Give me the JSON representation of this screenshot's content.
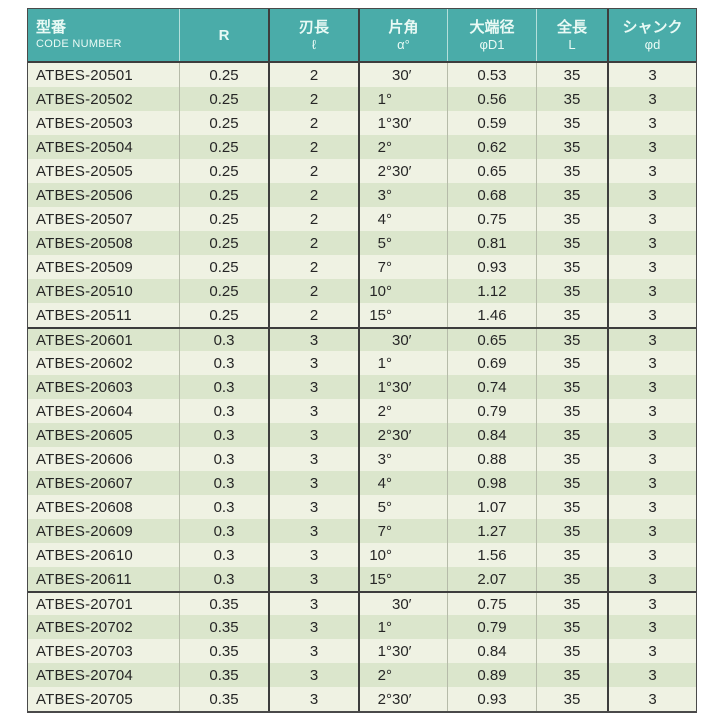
{
  "colors": {
    "header_bg": "#4aaca9",
    "header_text": "#e9faf5",
    "row_light": "#eff2e3",
    "row_alt": "#dbe6cc",
    "grid_dark": "#3d3d3d",
    "grid_light": "#b6bba9",
    "body_text": "#262626",
    "page_bg": "#ffffff"
  },
  "table": {
    "columns": [
      {
        "key": "code",
        "jp": "型番",
        "sub": "CODE NUMBER"
      },
      {
        "key": "radius",
        "jp": "R",
        "sub": ""
      },
      {
        "key": "flute-length",
        "jp": "刃長",
        "sub": "ℓ"
      },
      {
        "key": "angle",
        "jp": "片角",
        "sub": "α°"
      },
      {
        "key": "large-end-dia",
        "jp": "大端径",
        "sub": "φD1"
      },
      {
        "key": "overall-length",
        "jp": "全長",
        "sub": "L"
      },
      {
        "key": "shank",
        "jp": "シャンク",
        "sub": "φd"
      }
    ],
    "groups": [
      {
        "rows": [
          [
            "ATBES-20501",
            "0.25",
            "2",
            "30′",
            "0.53",
            "35",
            "3"
          ],
          [
            "ATBES-20502",
            "0.25",
            "2",
            "1°",
            "0.56",
            "35",
            "3"
          ],
          [
            "ATBES-20503",
            "0.25",
            "2",
            "1°30′",
            "0.59",
            "35",
            "3"
          ],
          [
            "ATBES-20504",
            "0.25",
            "2",
            "2°",
            "0.62",
            "35",
            "3"
          ],
          [
            "ATBES-20505",
            "0.25",
            "2",
            "2°30′",
            "0.65",
            "35",
            "3"
          ],
          [
            "ATBES-20506",
            "0.25",
            "2",
            "3°",
            "0.68",
            "35",
            "3"
          ],
          [
            "ATBES-20507",
            "0.25",
            "2",
            "4°",
            "0.75",
            "35",
            "3"
          ],
          [
            "ATBES-20508",
            "0.25",
            "2",
            "5°",
            "0.81",
            "35",
            "3"
          ],
          [
            "ATBES-20509",
            "0.25",
            "2",
            "7°",
            "0.93",
            "35",
            "3"
          ],
          [
            "ATBES-20510",
            "0.25",
            "2",
            "10°",
            "1.12",
            "35",
            "3"
          ],
          [
            "ATBES-20511",
            "0.25",
            "2",
            "15°",
            "1.46",
            "35",
            "3"
          ]
        ]
      },
      {
        "rows": [
          [
            "ATBES-20601",
            "0.3",
            "3",
            "30′",
            "0.65",
            "35",
            "3"
          ],
          [
            "ATBES-20602",
            "0.3",
            "3",
            "1°",
            "0.69",
            "35",
            "3"
          ],
          [
            "ATBES-20603",
            "0.3",
            "3",
            "1°30′",
            "0.74",
            "35",
            "3"
          ],
          [
            "ATBES-20604",
            "0.3",
            "3",
            "2°",
            "0.79",
            "35",
            "3"
          ],
          [
            "ATBES-20605",
            "0.3",
            "3",
            "2°30′",
            "0.84",
            "35",
            "3"
          ],
          [
            "ATBES-20606",
            "0.3",
            "3",
            "3°",
            "0.88",
            "35",
            "3"
          ],
          [
            "ATBES-20607",
            "0.3",
            "3",
            "4°",
            "0.98",
            "35",
            "3"
          ],
          [
            "ATBES-20608",
            "0.3",
            "3",
            "5°",
            "1.07",
            "35",
            "3"
          ],
          [
            "ATBES-20609",
            "0.3",
            "3",
            "7°",
            "1.27",
            "35",
            "3"
          ],
          [
            "ATBES-20610",
            "0.3",
            "3",
            "10°",
            "1.56",
            "35",
            "3"
          ],
          [
            "ATBES-20611",
            "0.3",
            "3",
            "15°",
            "2.07",
            "35",
            "3"
          ]
        ]
      },
      {
        "rows": [
          [
            "ATBES-20701",
            "0.35",
            "3",
            "30′",
            "0.75",
            "35",
            "3"
          ],
          [
            "ATBES-20702",
            "0.35",
            "3",
            "1°",
            "0.79",
            "35",
            "3"
          ],
          [
            "ATBES-20703",
            "0.35",
            "3",
            "1°30′",
            "0.84",
            "35",
            "3"
          ],
          [
            "ATBES-20704",
            "0.35",
            "3",
            "2°",
            "0.89",
            "35",
            "3"
          ],
          [
            "ATBES-20705",
            "0.35",
            "3",
            "2°30′",
            "0.93",
            "35",
            "3"
          ]
        ]
      }
    ]
  }
}
